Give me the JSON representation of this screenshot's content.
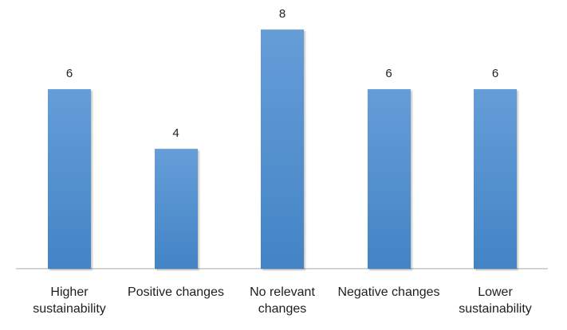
{
  "chart_data": {
    "type": "bar",
    "title": "",
    "xlabel": "",
    "ylabel": "",
    "categories": [
      "Higher sustainability",
      "Positive changes",
      "No relevant changes",
      "Negative changes",
      "Lower sustainability"
    ],
    "categories_display": [
      "Higher\nsustainability",
      "Positive changes",
      "No relevant\nchanges",
      "Negative changes",
      "Lower\nsustainability"
    ],
    "values": [
      6,
      4,
      8,
      6,
      6
    ],
    "data_labels": [
      "6",
      "4",
      "8",
      "6",
      "6"
    ],
    "ylim": [
      0,
      8
    ],
    "grid": false,
    "legend": null,
    "bar_color_top": "#659dd8",
    "bar_color_bottom": "#4384c5",
    "axis_line_color": "#c6c6c6",
    "label_color": "#1e1e1e"
  }
}
